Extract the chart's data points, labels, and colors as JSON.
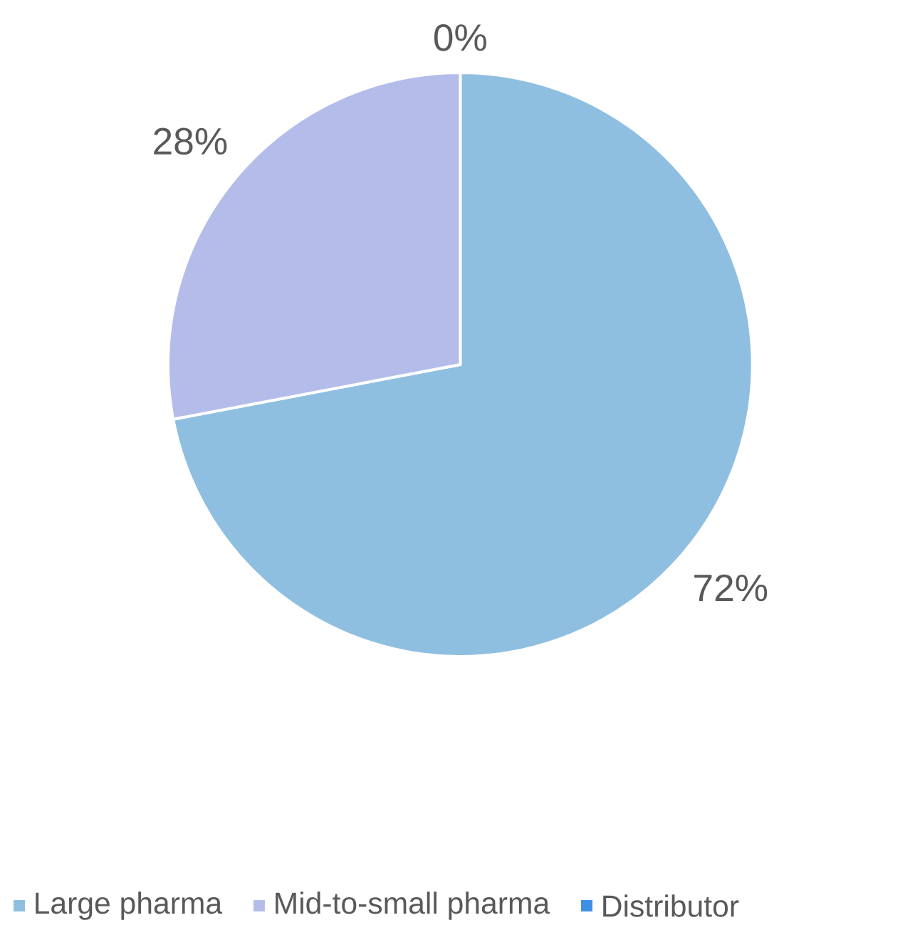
{
  "chart_data": {
    "type": "pie",
    "categories": [
      "Large pharma",
      "Mid-to-small pharma",
      "Distributor"
    ],
    "values": [
      72,
      28,
      0
    ],
    "value_labels": [
      "72%",
      "28%",
      "0%"
    ],
    "colors": [
      "#8fbfe0",
      "#b4bdea",
      "#3f8fe6"
    ],
    "legend": "bottom"
  }
}
